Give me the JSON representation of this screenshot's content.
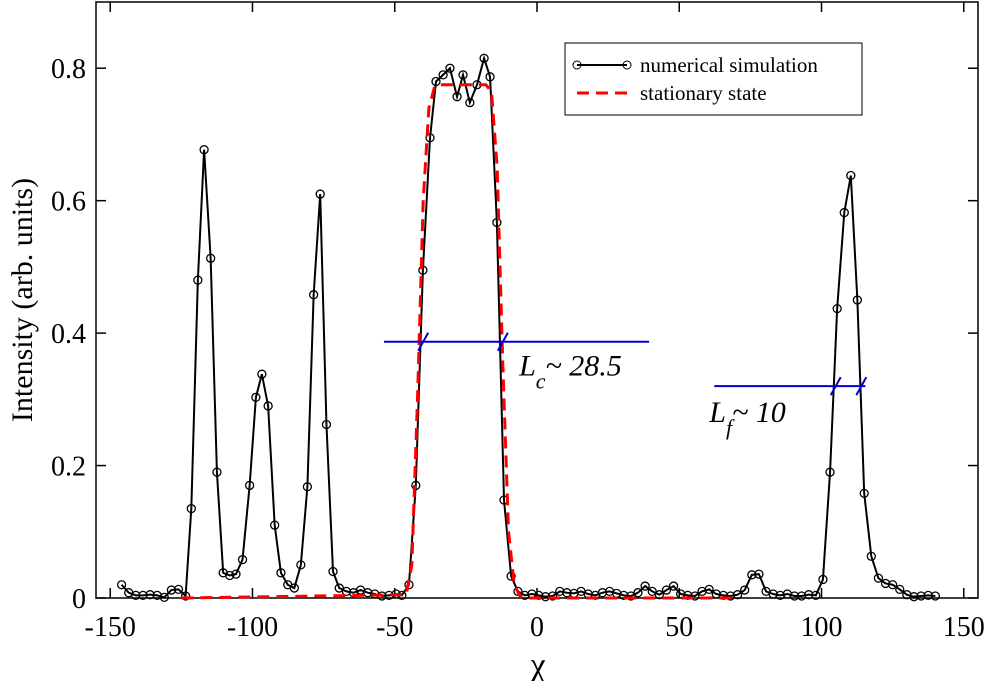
{
  "chart_data": {
    "type": "line",
    "xlabel": "χ",
    "ylabel": "Intensity (arb. units)",
    "xlim": [
      -155,
      155
    ],
    "ylim": [
      0,
      0.9
    ],
    "xticks": [
      -150,
      -100,
      -50,
      0,
      50,
      100,
      150
    ],
    "yticks": [
      0,
      0.2,
      0.4,
      0.6,
      0.8
    ],
    "legend": "upper right",
    "series": [
      {
        "name": "numerical simulation",
        "color": "#000000",
        "style": "solid",
        "markers": true,
        "x": [
          -146,
          -143.5,
          -141,
          -138.5,
          -136,
          -133.5,
          -131,
          -128.5,
          -126,
          -123.5,
          -121.5,
          -119.2,
          -117,
          -114.7,
          -112.5,
          -110.3,
          -108,
          -105.8,
          -103.5,
          -101,
          -98.8,
          -96.7,
          -94.5,
          -92.2,
          -90,
          -87.6,
          -85.3,
          -83,
          -80.7,
          -78.5,
          -76.2,
          -74,
          -71.7,
          -69.5,
          -67,
          -64.5,
          -62,
          -59.5,
          -57,
          -54.5,
          -52,
          -49.5,
          -47.5,
          -45,
          -42.6,
          -40.1,
          -37.6,
          -35.5,
          -33,
          -30.6,
          -28.1,
          -26,
          -23.6,
          -21.1,
          -18.6,
          -16.5,
          -14.1,
          -11.6,
          -9.1,
          -6.7,
          -4.3,
          -1.8,
          0.6,
          3,
          5.5,
          8,
          10.5,
          13,
          15.5,
          18,
          20.5,
          23,
          25.5,
          28,
          30.5,
          33,
          35.5,
          38,
          40.5,
          43,
          45.5,
          48,
          50.5,
          53,
          55.5,
          58,
          60.5,
          63,
          65.5,
          68,
          70.5,
          73,
          75.5,
          78,
          80.5,
          83,
          85.5,
          88,
          90.5,
          93,
          95.5,
          98,
          100.5,
          103,
          105.5,
          108,
          110.3,
          112.6,
          115,
          117.5,
          120,
          122.5,
          125,
          127.5,
          130,
          132.5,
          135,
          137.5,
          140
        ],
        "values": [
          0.02,
          0.008,
          0.004,
          0.004,
          0.005,
          0.004,
          0.001,
          0.012,
          0.013,
          0.003,
          0.135,
          0.48,
          0.677,
          0.513,
          0.19,
          0.038,
          0.034,
          0.036,
          0.058,
          0.17,
          0.303,
          0.338,
          0.29,
          0.11,
          0.038,
          0.02,
          0.015,
          0.05,
          0.168,
          0.458,
          0.61,
          0.262,
          0.04,
          0.015,
          0.01,
          0.008,
          0.012,
          0.008,
          0.006,
          0.003,
          0.004,
          0.006,
          0.004,
          0.02,
          0.17,
          0.495,
          0.695,
          0.78,
          0.79,
          0.8,
          0.757,
          0.79,
          0.748,
          0.775,
          0.815,
          0.787,
          0.567,
          0.148,
          0.033,
          0.01,
          0.004,
          0.006,
          0.004,
          0.002,
          0.003,
          0.01,
          0.008,
          0.007,
          0.01,
          0.006,
          0.004,
          0.008,
          0.01,
          0.007,
          0.004,
          0.003,
          0.008,
          0.018,
          0.01,
          0.005,
          0.012,
          0.018,
          0.006,
          0.004,
          0.003,
          0.01,
          0.013,
          0.006,
          0.004,
          0.003,
          0.005,
          0.012,
          0.035,
          0.036,
          0.01,
          0.006,
          0.004,
          0.006,
          0.003,
          0.003,
          0.005,
          0.004,
          0.028,
          0.19,
          0.437,
          0.582,
          0.638,
          0.45,
          0.158,
          0.063,
          0.03,
          0.022,
          0.02,
          0.013,
          0.005,
          0.002,
          0.003,
          0.004,
          0.003
        ]
      },
      {
        "name": "stationary state",
        "color": "#ff0000",
        "style": "dashed",
        "markers": false,
        "x": [
          -125,
          -46,
          -44,
          -42,
          -40,
          -38,
          -36,
          -34,
          -18,
          -16,
          -14,
          -12,
          -10,
          -8,
          -6,
          -4,
          70
        ],
        "values": [
          0,
          0.005,
          0.05,
          0.3,
          0.6,
          0.74,
          0.772,
          0.775,
          0.775,
          0.765,
          0.65,
          0.35,
          0.1,
          0.02,
          0.003,
          0,
          0
        ]
      }
    ],
    "annotations": [
      {
        "text": "L",
        "subscript": "c",
        "suffix": "~ 28.5",
        "color": "#0000cc",
        "y": 0.387,
        "x_range": [
          -53.8,
          39.4
        ],
        "marks": [
          -40,
          -12
        ]
      },
      {
        "text": "L",
        "subscript": "f",
        "suffix": "~ 10",
        "color": "#0000cc",
        "y": 0.32,
        "x_range": [
          62.3,
          115.4
        ],
        "marks": [
          105,
          114
        ]
      }
    ]
  }
}
